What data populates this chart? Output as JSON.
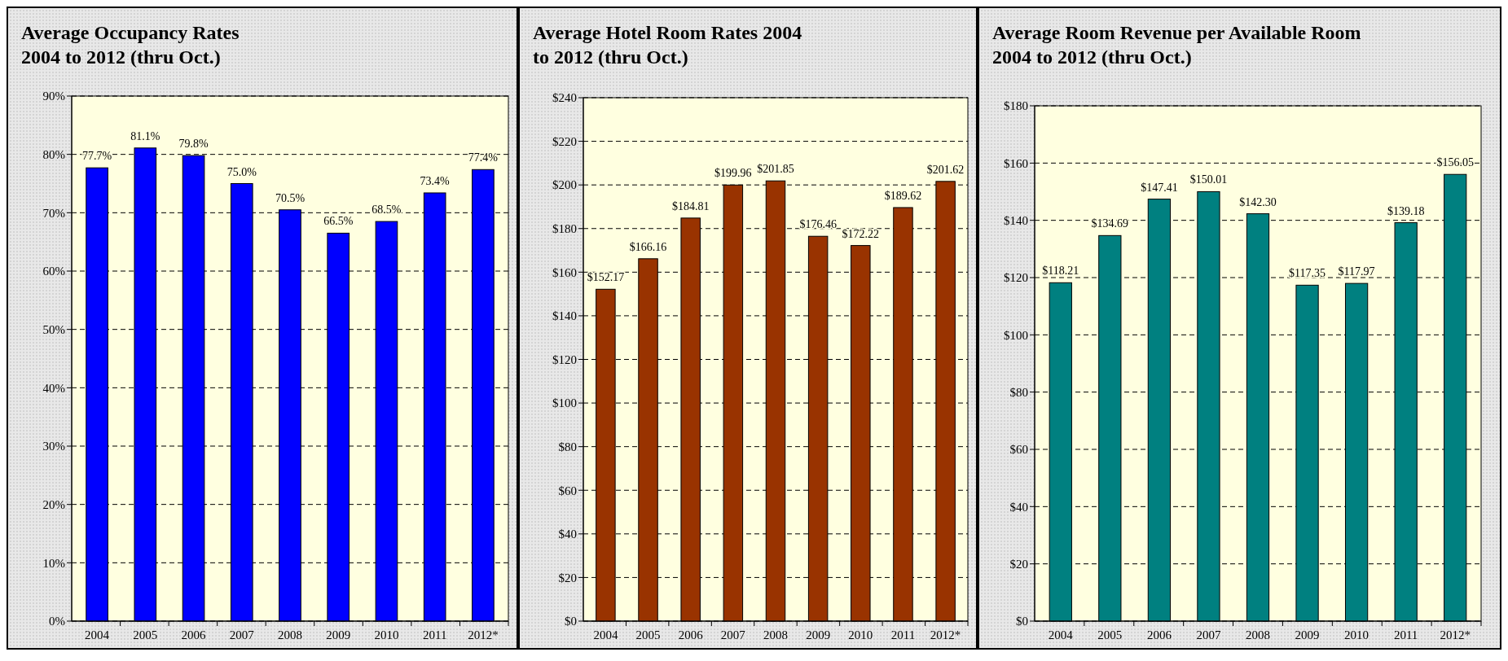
{
  "chart_data": [
    {
      "type": "bar",
      "title": "Average Occupancy Rates\n2004 to 2012 (thru Oct.)",
      "categories": [
        "2004",
        "2005",
        "2006",
        "2007",
        "2008",
        "2009",
        "2010",
        "2011",
        "2012*"
      ],
      "values": [
        77.7,
        81.1,
        79.8,
        75.0,
        70.5,
        66.5,
        68.5,
        73.4,
        77.4
      ],
      "color": "#0000ff",
      "value_labels": [
        "77.7%",
        "81.1%",
        "79.8%",
        "75.0%",
        "70.5%",
        "66.5%",
        "68.5%",
        "73.4%",
        "77.4%"
      ],
      "ylim": [
        0,
        90
      ],
      "yticks": [
        {
          "value": 0,
          "label": "0%"
        },
        {
          "value": 10,
          "label": "10%"
        },
        {
          "value": 20,
          "label": "20%"
        },
        {
          "value": 30,
          "label": "30%"
        },
        {
          "value": 40,
          "label": "40%"
        },
        {
          "value": 50,
          "label": "50%"
        },
        {
          "value": 60,
          "label": "60%"
        },
        {
          "value": 70,
          "label": "70%"
        },
        {
          "value": 80,
          "label": "80%"
        },
        {
          "value": 90,
          "label": "90%"
        }
      ],
      "grid": "y"
    },
    {
      "type": "bar",
      "title": "Average Hotel Room Rates 2004\nto 2012 (thru Oct.)",
      "categories": [
        "2004",
        "2005",
        "2006",
        "2007",
        "2008",
        "2009",
        "2010",
        "2011",
        "2012*"
      ],
      "values": [
        152.17,
        166.16,
        184.81,
        199.96,
        201.85,
        176.46,
        172.22,
        189.62,
        201.62
      ],
      "color": "#993300",
      "value_labels": [
        "$152.17",
        "$166.16",
        "$184.81",
        "$199.96",
        "$201.85",
        "$176.46",
        "$172.22",
        "$189.62",
        "$201.62"
      ],
      "ylim": [
        0,
        240
      ],
      "yticks": [
        {
          "value": 0,
          "label": "$0"
        },
        {
          "value": 20,
          "label": "$20"
        },
        {
          "value": 40,
          "label": "$40"
        },
        {
          "value": 60,
          "label": "$60"
        },
        {
          "value": 80,
          "label": "$80"
        },
        {
          "value": 100,
          "label": "$100"
        },
        {
          "value": 120,
          "label": "$120"
        },
        {
          "value": 140,
          "label": "$140"
        },
        {
          "value": 160,
          "label": "$160"
        },
        {
          "value": 180,
          "label": "$180"
        },
        {
          "value": 200,
          "label": "$200"
        },
        {
          "value": 220,
          "label": "$220"
        },
        {
          "value": 240,
          "label": "$240"
        }
      ],
      "grid": "y"
    },
    {
      "type": "bar",
      "title": "Average Room Revenue per Available Room\n2004 to 2012 (thru Oct.)",
      "categories": [
        "2004",
        "2005",
        "2006",
        "2007",
        "2008",
        "2009",
        "2010",
        "2011",
        "2012*"
      ],
      "values": [
        118.21,
        134.69,
        147.41,
        150.01,
        142.3,
        117.35,
        117.97,
        139.18,
        156.05
      ],
      "color": "#008080",
      "value_labels": [
        "$118.21",
        "$134.69",
        "$147.41",
        "$150.01",
        "$142.30",
        "$117.35",
        "$117.97",
        "$139.18",
        "$156.05"
      ],
      "ylim": [
        0,
        180
      ],
      "yticks": [
        {
          "value": 0,
          "label": "$0"
        },
        {
          "value": 20,
          "label": "$20"
        },
        {
          "value": 40,
          "label": "$40"
        },
        {
          "value": 60,
          "label": "$60"
        },
        {
          "value": 80,
          "label": "$80"
        },
        {
          "value": 100,
          "label": "$100"
        },
        {
          "value": 120,
          "label": "$120"
        },
        {
          "value": 140,
          "label": "$140"
        },
        {
          "value": 160,
          "label": "$160"
        },
        {
          "value": 180,
          "label": "$180"
        }
      ],
      "grid": "y"
    }
  ]
}
